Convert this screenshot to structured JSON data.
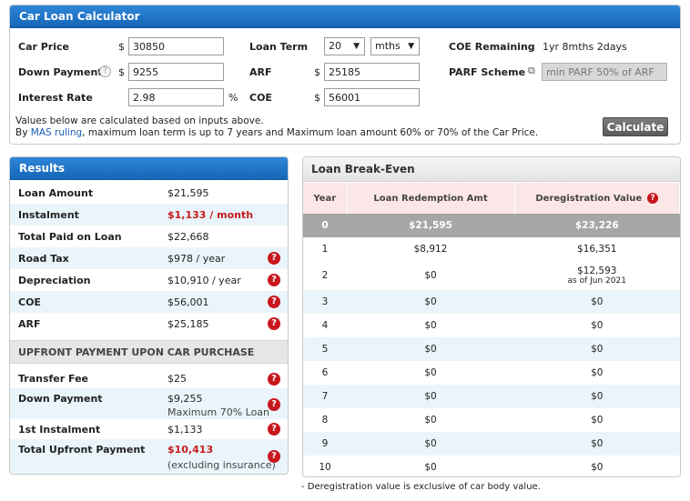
{
  "calculator": {
    "title": "Car Loan Calculator",
    "car_price_label": "Car Price",
    "car_price_currency": "$",
    "car_price_value": "30850",
    "down_payment_label": "Down Payment",
    "down_payment_currency": "$",
    "down_payment_value": "9255",
    "interest_rate_label": "Interest Rate",
    "interest_rate_value": "2.98",
    "interest_rate_unit": "%",
    "loan_term_label": "Loan Term",
    "loan_term_value": "20",
    "loan_term_unit": "mths",
    "arf_label": "ARF",
    "arf_currency": "$",
    "arf_value": "25185",
    "coe_label": "COE",
    "coe_currency": "$",
    "coe_value": "56001",
    "coe_remaining_label": "COE Remaining",
    "coe_remaining_value": "1yr 8mths 2days",
    "parf_label": "PARF Scheme",
    "parf_placeholder": "min PARF 50% of ARF",
    "note_line1": "Values below are calculated based on inputs above.",
    "note_line2_prefix": "By ",
    "note_link": "MAS ruling",
    "note_line2_suffix": ", maximum loan term is up to 7 years and Maximum loan amount 60% or 70% of the Car Price.",
    "calculate_label": "Calculate"
  },
  "results": {
    "title": "Results",
    "rows": [
      {
        "label": "Loan Amount",
        "value": "$21,595"
      },
      {
        "label": "Instalment",
        "value": "$1,133 / month"
      },
      {
        "label": "Total Paid on Loan",
        "value": "$22,668"
      },
      {
        "label": "Road Tax",
        "value": "$978 / year"
      },
      {
        "label": "Depreciation",
        "value": "$10,910 / year"
      },
      {
        "label": "COE",
        "value": "$56,001"
      },
      {
        "label": "ARF",
        "value": "$25,185"
      }
    ],
    "upfront_title": "UPFRONT PAYMENT UPON CAR PURCHASE",
    "upfront_rows": [
      {
        "label": "Transfer Fee",
        "value": "$25"
      },
      {
        "label": "Down Payment",
        "value": "$9,255",
        "sub": "Maximum 70% Loan"
      },
      {
        "label": "1st Instalment",
        "value": "$1,133"
      },
      {
        "label": "Total Upfront Payment",
        "value": "$10,413",
        "sub": "(excluding insurance)"
      }
    ],
    "help_symbol": "?"
  },
  "breakeven": {
    "title": "Loan Break-Even",
    "headers": {
      "year": "Year",
      "redemption": "Loan Redemption Amt",
      "dereg": "Deregistration Value"
    },
    "rows": [
      {
        "year": "0",
        "redemption": "$21,595",
        "dereg": "$23,226"
      },
      {
        "year": "1",
        "redemption": "$8,912",
        "dereg": "$16,351"
      },
      {
        "year": "2",
        "redemption": "$0",
        "dereg": "$12,593",
        "dereg_note": "as of Jun 2021"
      },
      {
        "year": "3",
        "redemption": "$0",
        "dereg": "$0"
      },
      {
        "year": "4",
        "redemption": "$0",
        "dereg": "$0"
      },
      {
        "year": "5",
        "redemption": "$0",
        "dereg": "$0"
      },
      {
        "year": "6",
        "redemption": "$0",
        "dereg": "$0"
      },
      {
        "year": "7",
        "redemption": "$0",
        "dereg": "$0"
      },
      {
        "year": "8",
        "redemption": "$0",
        "dereg": "$0"
      },
      {
        "year": "9",
        "redemption": "$0",
        "dereg": "$0"
      },
      {
        "year": "10",
        "redemption": "$0",
        "dereg": "$0"
      }
    ],
    "footnote": "- Deregistration value is exclusive of car body value."
  }
}
